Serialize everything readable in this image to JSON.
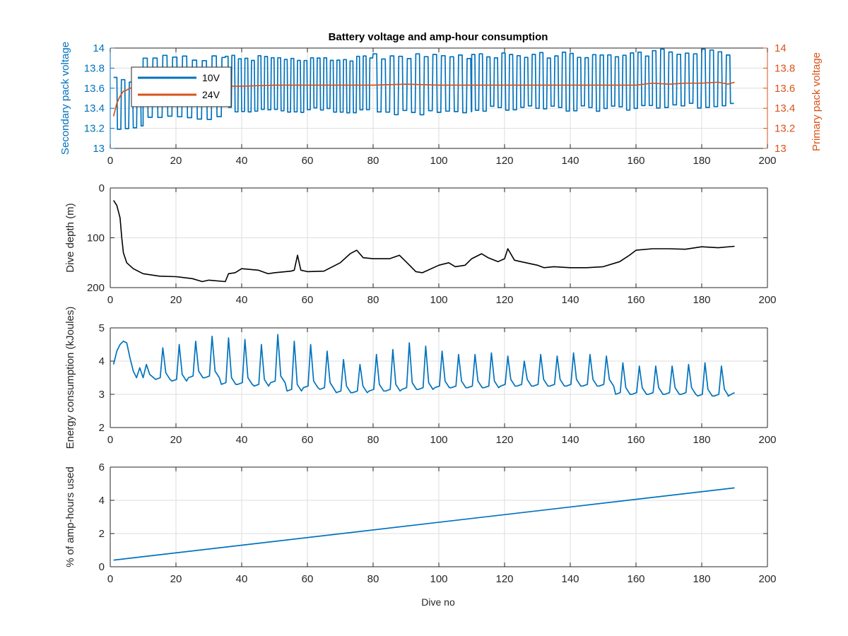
{
  "figure": {
    "title": "Battery voltage and amp-hour consumption",
    "xlabel": "Dive no"
  },
  "chart_data": [
    {
      "type": "line",
      "title": "Battery voltage and amp-hour consumption",
      "xlabel": "",
      "ylabel": "Secondary pack voltage",
      "ylabel_right": "Primary pack voltage",
      "xlim": [
        0,
        200
      ],
      "ylim": [
        13,
        14
      ],
      "ylim_right": [
        13,
        14
      ],
      "xticks": [
        0,
        20,
        40,
        60,
        80,
        100,
        120,
        140,
        160,
        180,
        200
      ],
      "yticks": [
        13,
        13.2,
        13.4,
        13.6,
        13.8,
        14
      ],
      "yticks_right": [
        13,
        13.2,
        13.4,
        13.6,
        13.8,
        14
      ],
      "grid": true,
      "legend": "top-left",
      "colors": {
        "10V": "#0072BD",
        "24V": "#D95319"
      },
      "series": [
        {
          "name": "10V",
          "axis": "left",
          "note_pattern": "oscillates between a low level and a high level",
          "segments": [
            {
              "x": [
                1,
                10
              ],
              "high": 13.68,
              "low": 13.2,
              "period": 2.4
            },
            {
              "x": [
                10,
                35
              ],
              "high": 13.9,
              "low": 13.31,
              "period": 3.0
            },
            {
              "x": [
                35,
                80
              ],
              "high": 13.9,
              "low": 13.38,
              "period": 2.0
            },
            {
              "x": [
                80,
                110
              ],
              "high": 13.92,
              "low": 13.36,
              "period": 2.6
            },
            {
              "x": [
                110,
                165
              ],
              "high": 13.93,
              "low": 13.4,
              "period": 2.3
            },
            {
              "x": [
                165,
                190
              ],
              "high": 13.96,
              "low": 13.42,
              "period": 2.5
            }
          ]
        },
        {
          "name": "24V",
          "axis": "right",
          "x": [
            1,
            2,
            3,
            4,
            5,
            6,
            8,
            10,
            15,
            20,
            30,
            40,
            50,
            60,
            70,
            80,
            90,
            100,
            110,
            120,
            130,
            140,
            150,
            160,
            165,
            170,
            175,
            180,
            185,
            188,
            190
          ],
          "y": [
            13.32,
            13.45,
            13.52,
            13.57,
            13.58,
            13.6,
            13.61,
            13.61,
            13.61,
            13.61,
            13.62,
            13.62,
            13.63,
            13.63,
            13.63,
            13.63,
            13.64,
            13.63,
            13.63,
            13.63,
            13.63,
            13.63,
            13.63,
            13.63,
            13.65,
            13.64,
            13.65,
            13.65,
            13.66,
            13.64,
            13.66
          ]
        }
      ]
    },
    {
      "type": "line",
      "xlabel": "",
      "ylabel": "Dive depth (m)",
      "xlim": [
        0,
        200
      ],
      "ylim": [
        0,
        200
      ],
      "y_reversed": true,
      "xticks": [
        0,
        20,
        40,
        60,
        80,
        100,
        120,
        140,
        160,
        180,
        200
      ],
      "yticks": [
        0,
        100,
        200
      ],
      "grid": true,
      "series": [
        {
          "color": "#000000",
          "x": [
            1,
            2,
            3,
            3.5,
            4,
            5,
            7,
            10,
            15,
            20,
            25,
            28,
            30,
            35,
            36,
            38,
            40,
            45,
            48,
            50,
            55,
            56,
            57,
            58,
            60,
            65,
            70,
            73,
            75,
            77,
            80,
            85,
            88,
            90,
            93,
            95,
            100,
            103,
            105,
            108,
            110,
            113,
            115,
            118,
            120,
            121,
            123,
            125,
            130,
            132,
            135,
            140,
            145,
            150,
            155,
            158,
            160,
            165,
            170,
            175,
            180,
            185,
            190
          ],
          "y": [
            25,
            35,
            60,
            100,
            130,
            150,
            162,
            172,
            177,
            178,
            182,
            188,
            185,
            188,
            172,
            170,
            162,
            165,
            172,
            170,
            167,
            165,
            135,
            165,
            168,
            167,
            150,
            132,
            125,
            140,
            142,
            142,
            135,
            148,
            168,
            170,
            155,
            150,
            158,
            155,
            142,
            132,
            140,
            148,
            142,
            122,
            145,
            148,
            155,
            160,
            158,
            160,
            160,
            158,
            148,
            135,
            125,
            122,
            122,
            123,
            118,
            120,
            117
          ]
        }
      ]
    },
    {
      "type": "line",
      "xlabel": "",
      "ylabel": "Energy consumption (kJoules)",
      "xlim": [
        0,
        200
      ],
      "ylim": [
        2,
        5
      ],
      "xticks": [
        0,
        20,
        40,
        60,
        80,
        100,
        120,
        140,
        160,
        180,
        200
      ],
      "yticks": [
        2,
        3,
        4,
        5
      ],
      "grid": true,
      "series": [
        {
          "color": "#0072BD",
          "start": {
            "x": [
              1,
              2,
              3,
              4,
              5,
              6,
              7,
              8,
              9,
              10,
              11,
              12
            ],
            "y": [
              3.9,
              4.3,
              4.5,
              4.6,
              4.55,
              4.1,
              3.7,
              3.5,
              3.8,
              3.5,
              3.9,
              3.6
            ]
          },
          "peaks": [
            {
              "x": 16,
              "y": 4.4,
              "base": 3.45
            },
            {
              "x": 21,
              "y": 4.5,
              "base": 3.4
            },
            {
              "x": 26,
              "y": 4.6,
              "base": 3.5
            },
            {
              "x": 31,
              "y": 4.75,
              "base": 3.5
            },
            {
              "x": 36,
              "y": 4.7,
              "base": 3.3
            },
            {
              "x": 41,
              "y": 4.65,
              "base": 3.3
            },
            {
              "x": 46,
              "y": 4.5,
              "base": 3.25
            },
            {
              "x": 51,
              "y": 4.8,
              "base": 3.35
            },
            {
              "x": 56,
              "y": 4.6,
              "base": 3.1
            },
            {
              "x": 61,
              "y": 4.5,
              "base": 3.2
            },
            {
              "x": 66,
              "y": 4.3,
              "base": 3.15
            },
            {
              "x": 71,
              "y": 4.05,
              "base": 3.05
            },
            {
              "x": 76,
              "y": 3.9,
              "base": 3.05
            },
            {
              "x": 81,
              "y": 4.2,
              "base": 3.1
            },
            {
              "x": 86,
              "y": 4.35,
              "base": 3.1
            },
            {
              "x": 91,
              "y": 4.55,
              "base": 3.15
            },
            {
              "x": 96,
              "y": 4.45,
              "base": 3.15
            },
            {
              "x": 101,
              "y": 4.3,
              "base": 3.2
            },
            {
              "x": 106,
              "y": 4.2,
              "base": 3.2
            },
            {
              "x": 111,
              "y": 4.2,
              "base": 3.2
            },
            {
              "x": 116,
              "y": 4.25,
              "base": 3.2
            },
            {
              "x": 121,
              "y": 4.15,
              "base": 3.25
            },
            {
              "x": 126,
              "y": 4.0,
              "base": 3.25
            },
            {
              "x": 131,
              "y": 4.2,
              "base": 3.25
            },
            {
              "x": 136,
              "y": 4.15,
              "base": 3.25
            },
            {
              "x": 141,
              "y": 4.25,
              "base": 3.25
            },
            {
              "x": 146,
              "y": 4.2,
              "base": 3.25
            },
            {
              "x": 151,
              "y": 4.15,
              "base": 3.25
            },
            {
              "x": 156,
              "y": 3.95,
              "base": 3.0
            },
            {
              "x": 161,
              "y": 3.85,
              "base": 3.0
            },
            {
              "x": 166,
              "y": 3.85,
              "base": 3.0
            },
            {
              "x": 171,
              "y": 3.85,
              "base": 3.0
            },
            {
              "x": 176,
              "y": 3.9,
              "base": 3.0
            },
            {
              "x": 181,
              "y": 3.95,
              "base": 2.95
            },
            {
              "x": 186,
              "y": 3.85,
              "base": 2.95
            }
          ],
          "end": {
            "x": [
              188,
              190
            ],
            "y": [
              2.95,
              3.05
            ]
          }
        }
      ]
    },
    {
      "type": "line",
      "xlabel": "Dive no",
      "ylabel": "% of amp-hours used",
      "xlim": [
        0,
        200
      ],
      "ylim": [
        0,
        6
      ],
      "xticks": [
        0,
        20,
        40,
        60,
        80,
        100,
        120,
        140,
        160,
        180,
        200
      ],
      "yticks": [
        0,
        2,
        4,
        6
      ],
      "grid": true,
      "series": [
        {
          "color": "#0072BD",
          "x": [
            1,
            190
          ],
          "y": [
            0.4,
            4.75
          ]
        }
      ]
    }
  ]
}
